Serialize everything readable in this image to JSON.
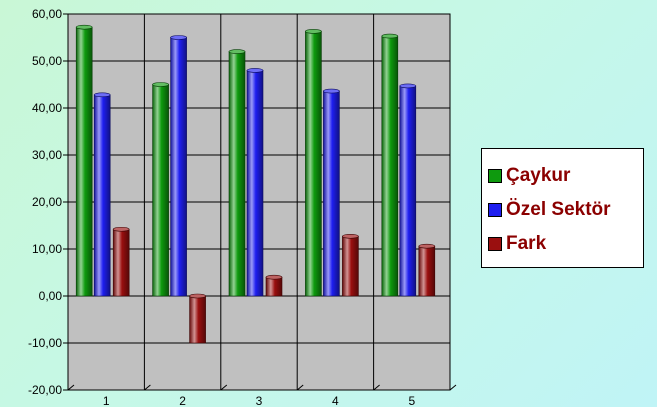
{
  "chart_data": {
    "type": "bar",
    "categories": [
      "1",
      "2",
      "3",
      "4",
      "5"
    ],
    "series": [
      {
        "name": "Çaykur",
        "values": [
          57.2,
          45.0,
          52.0,
          56.3,
          55.3
        ],
        "color": "#0e9a0e"
      },
      {
        "name": "Özel Sektör",
        "values": [
          42.8,
          55.0,
          48.0,
          43.6,
          44.7
        ],
        "color": "#1e1ef0"
      },
      {
        "name": "Fark",
        "values": [
          14.2,
          -10.0,
          4.0,
          12.7,
          10.6
        ],
        "color": "#9a0f0f"
      }
    ],
    "y_tick_labels": [
      "-20,00",
      "-10,00",
      "0,00",
      "10,00",
      "20,00",
      "30,00",
      "40,00",
      "50,00",
      "60,00"
    ],
    "ylim": [
      -20,
      60
    ],
    "ystep": 10,
    "grid": true,
    "legend_position": "right",
    "plot_background": "#c0c0c0"
  }
}
